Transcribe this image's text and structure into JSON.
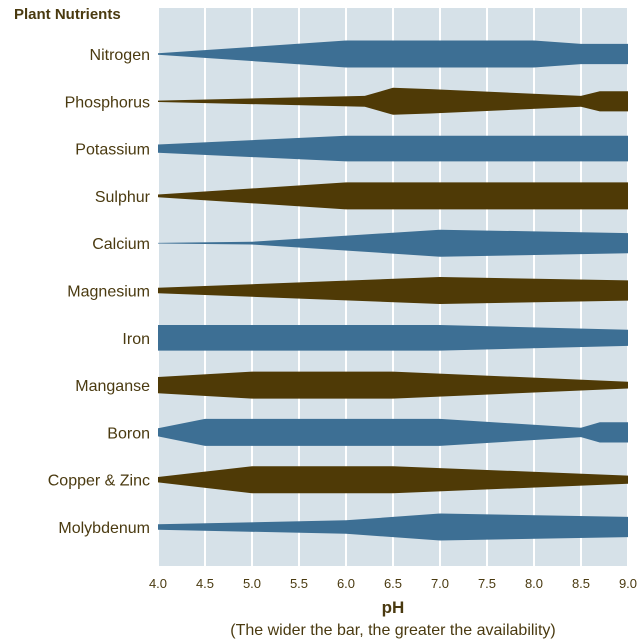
{
  "chart_data": {
    "type": "area",
    "title": "Plant Nutrients",
    "xlabel": "pH",
    "caption": "(The wider the bar, the greater the availability)",
    "xlim": [
      4.0,
      9.0
    ],
    "x_ticks": [
      "4.0",
      "4.5",
      "5.0",
      "5.5",
      "6.0",
      "6.5",
      "7.0",
      "7.5",
      "8.0",
      "8.5",
      "9.0"
    ],
    "grid": "vertical",
    "colors": {
      "blue": "#3d6f94",
      "brown": "#4f3a06",
      "background": "#d6e1e8",
      "grid": "#ffffff",
      "text": "#4a3a10"
    },
    "series": [
      {
        "name": "Nitrogen",
        "color": "blue",
        "points": [
          [
            4.0,
            0.05
          ],
          [
            6.0,
            1.0
          ],
          [
            8.0,
            1.0
          ],
          [
            8.5,
            0.75
          ],
          [
            9.0,
            0.75
          ]
        ]
      },
      {
        "name": "Phosphorus",
        "color": "brown",
        "points": [
          [
            4.0,
            0.05
          ],
          [
            6.2,
            0.4
          ],
          [
            6.5,
            1.0
          ],
          [
            6.9,
            0.9
          ],
          [
            8.5,
            0.4
          ],
          [
            8.7,
            0.75
          ],
          [
            9.0,
            0.75
          ]
        ]
      },
      {
        "name": "Potassium",
        "color": "blue",
        "points": [
          [
            4.0,
            0.3
          ],
          [
            6.0,
            0.95
          ],
          [
            9.0,
            0.95
          ]
        ]
      },
      {
        "name": "Sulphur",
        "color": "brown",
        "points": [
          [
            4.0,
            0.1
          ],
          [
            6.0,
            1.0
          ],
          [
            9.0,
            1.0
          ]
        ]
      },
      {
        "name": "Calcium",
        "color": "blue",
        "points": [
          [
            4.0,
            0.02
          ],
          [
            5.0,
            0.1
          ],
          [
            7.0,
            1.0
          ],
          [
            9.0,
            0.75
          ]
        ]
      },
      {
        "name": "Magnesium",
        "color": "brown",
        "points": [
          [
            4.0,
            0.2
          ],
          [
            7.0,
            1.0
          ],
          [
            9.0,
            0.75
          ]
        ]
      },
      {
        "name": "Iron",
        "color": "blue",
        "points": [
          [
            4.0,
            0.95
          ],
          [
            7.0,
            0.95
          ],
          [
            9.0,
            0.6
          ]
        ]
      },
      {
        "name": "Manganse",
        "color": "brown",
        "points": [
          [
            4.0,
            0.6
          ],
          [
            5.0,
            1.0
          ],
          [
            6.5,
            1.0
          ],
          [
            9.0,
            0.25
          ]
        ]
      },
      {
        "name": "Boron",
        "color": "blue",
        "points": [
          [
            4.0,
            0.3
          ],
          [
            4.5,
            1.0
          ],
          [
            7.0,
            1.0
          ],
          [
            8.5,
            0.35
          ],
          [
            8.7,
            0.75
          ],
          [
            9.0,
            0.75
          ]
        ]
      },
      {
        "name": "Copper & Zinc",
        "color": "brown",
        "points": [
          [
            4.0,
            0.2
          ],
          [
            5.0,
            1.0
          ],
          [
            6.5,
            1.0
          ],
          [
            9.0,
            0.3
          ]
        ]
      },
      {
        "name": "Molybdenum",
        "color": "blue",
        "points": [
          [
            4.0,
            0.2
          ],
          [
            6.0,
            0.5
          ],
          [
            7.0,
            1.0
          ],
          [
            9.0,
            0.75
          ]
        ]
      }
    ]
  }
}
